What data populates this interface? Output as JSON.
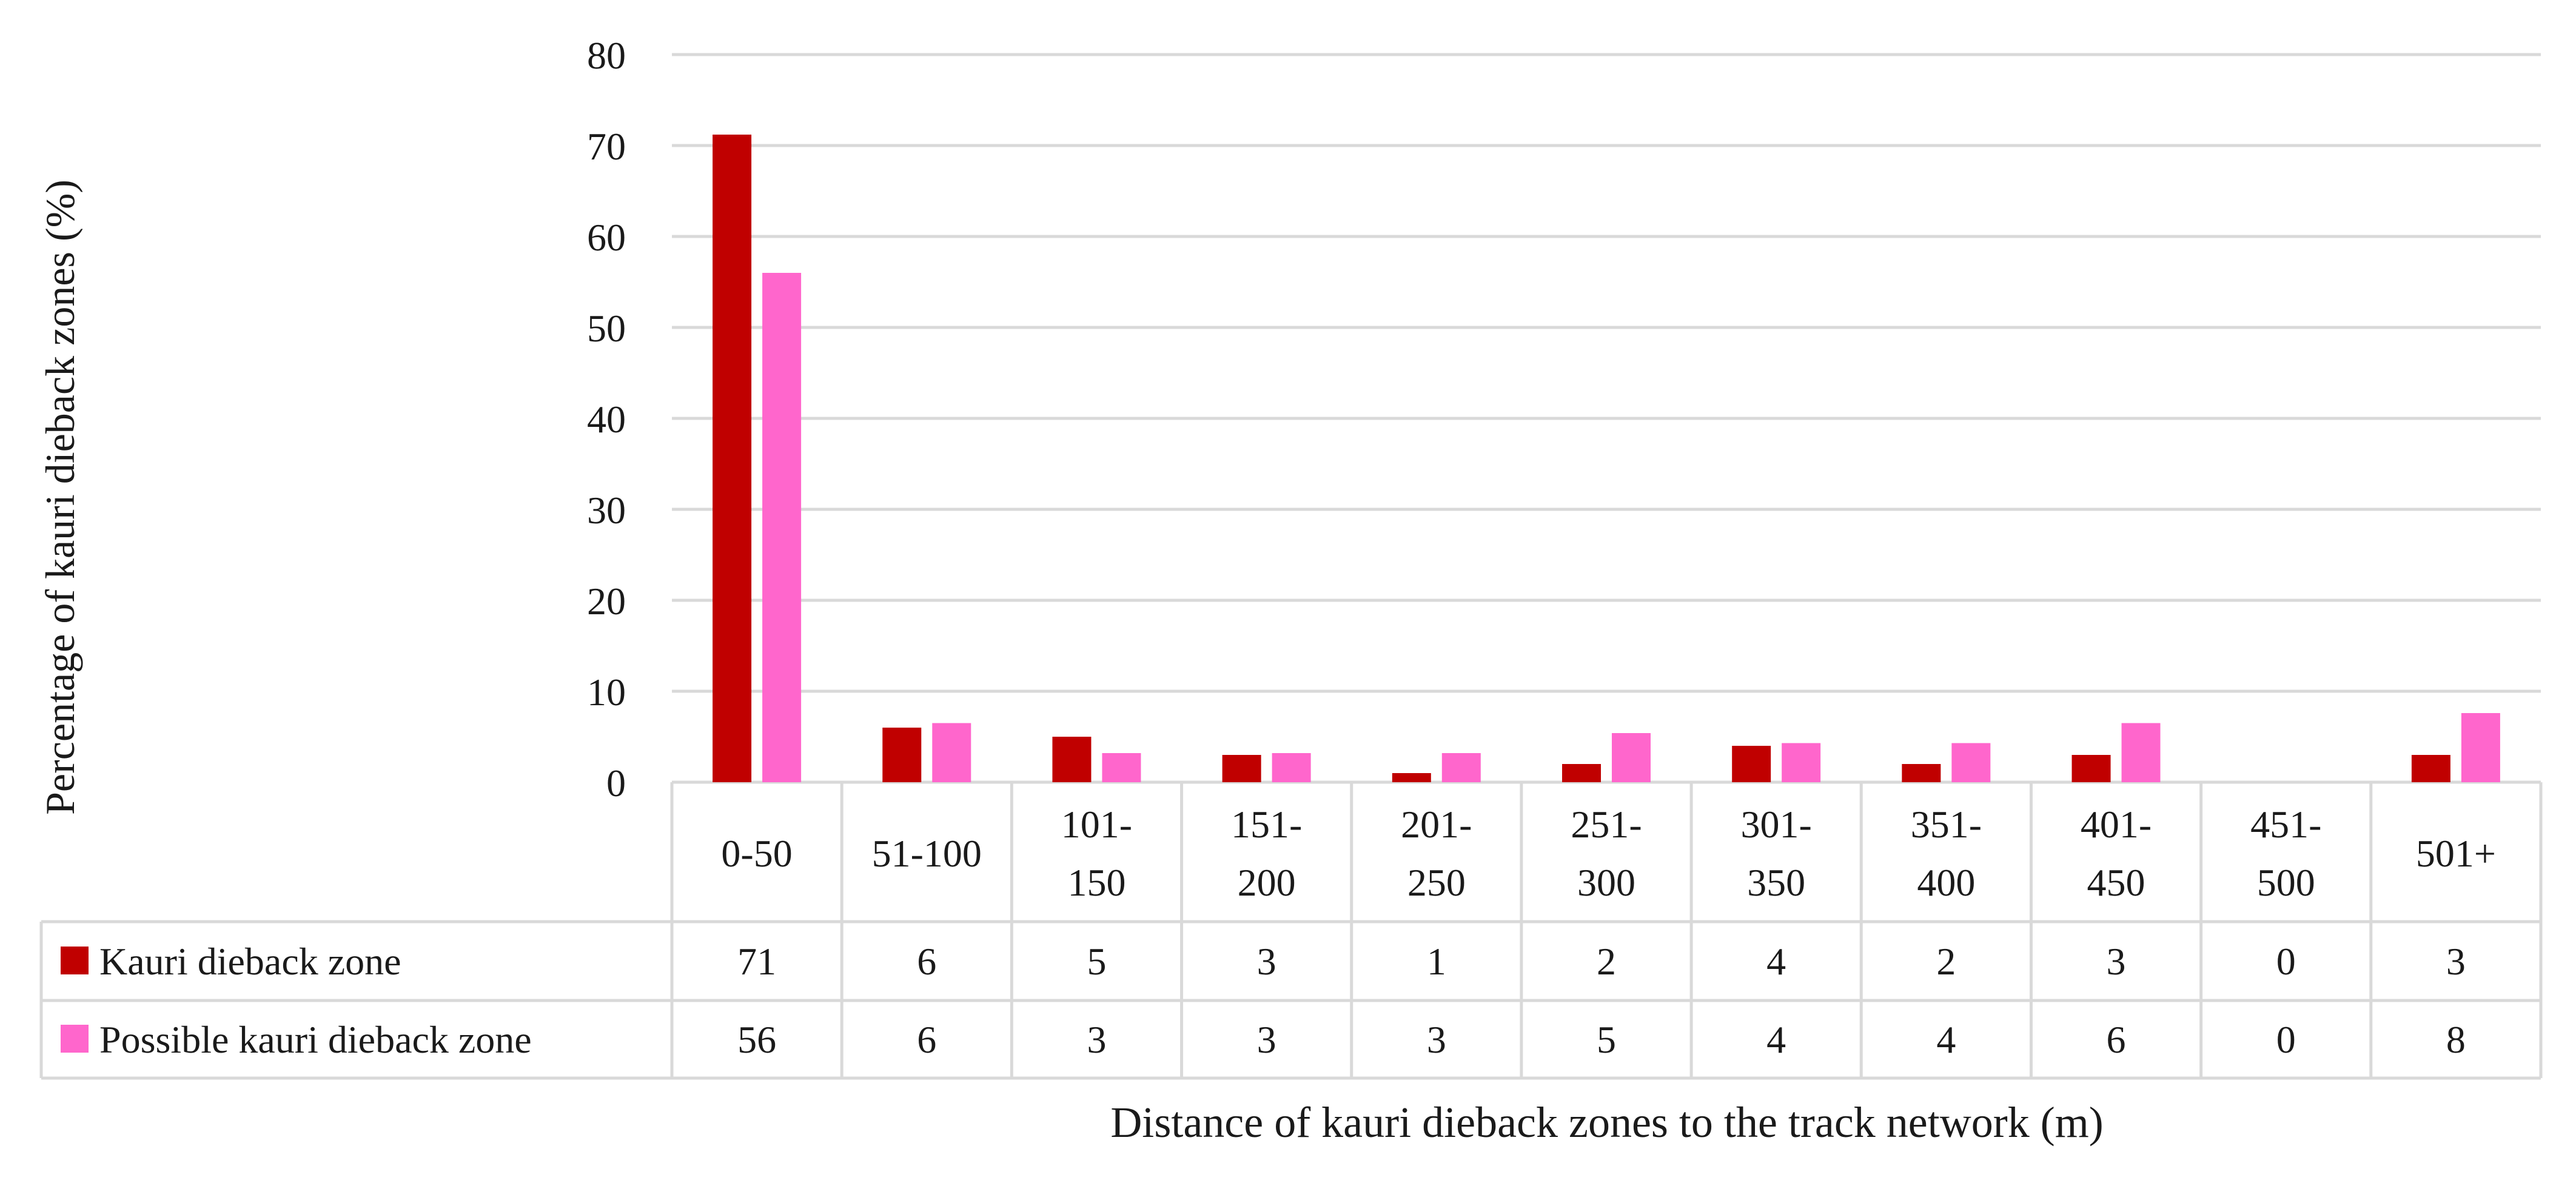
{
  "chart_data": {
    "type": "bar",
    "title": "",
    "xlabel": "Distance of kauri dieback zones to the track network (m)",
    "ylabel": "Percentage of kauri dieback zones (%)",
    "ylim": [
      0,
      80
    ],
    "yticks": [
      0,
      10,
      20,
      30,
      40,
      50,
      60,
      70,
      80
    ],
    "grid": true,
    "legend": "data-table",
    "categories": [
      "0-50",
      "51-100",
      "101-150",
      "151-200",
      "201-250",
      "251-300",
      "301-350",
      "351-400",
      "401-450",
      "451-500",
      "501+"
    ],
    "category_lines": [
      [
        "0-50"
      ],
      [
        "51-100"
      ],
      [
        "101-",
        "150"
      ],
      [
        "151-",
        "200"
      ],
      [
        "201-",
        "250"
      ],
      [
        "251-",
        "300"
      ],
      [
        "301-",
        "350"
      ],
      [
        "351-",
        "400"
      ],
      [
        "401-",
        "450"
      ],
      [
        "451-",
        "500"
      ],
      [
        "501+"
      ]
    ],
    "series": [
      {
        "name": "Kauri dieback zone",
        "color": "#c00000",
        "values": [
          71.2,
          6,
          5,
          3,
          1,
          2,
          4,
          2,
          3,
          0,
          3
        ],
        "table_values": [
          "71",
          "6",
          "5",
          "3",
          "1",
          "2",
          "4",
          "2",
          "3",
          "0",
          "3"
        ]
      },
      {
        "name": "Possible kauri dieback zone",
        "color": "#ff66cc",
        "values": [
          56,
          6.5,
          3.2,
          3.2,
          3.2,
          5.4,
          4.3,
          4.3,
          6.5,
          0,
          7.6
        ],
        "table_values": [
          "56",
          "6",
          "3",
          "3",
          "3",
          "5",
          "4",
          "4",
          "6",
          "0",
          "8"
        ]
      }
    ]
  }
}
